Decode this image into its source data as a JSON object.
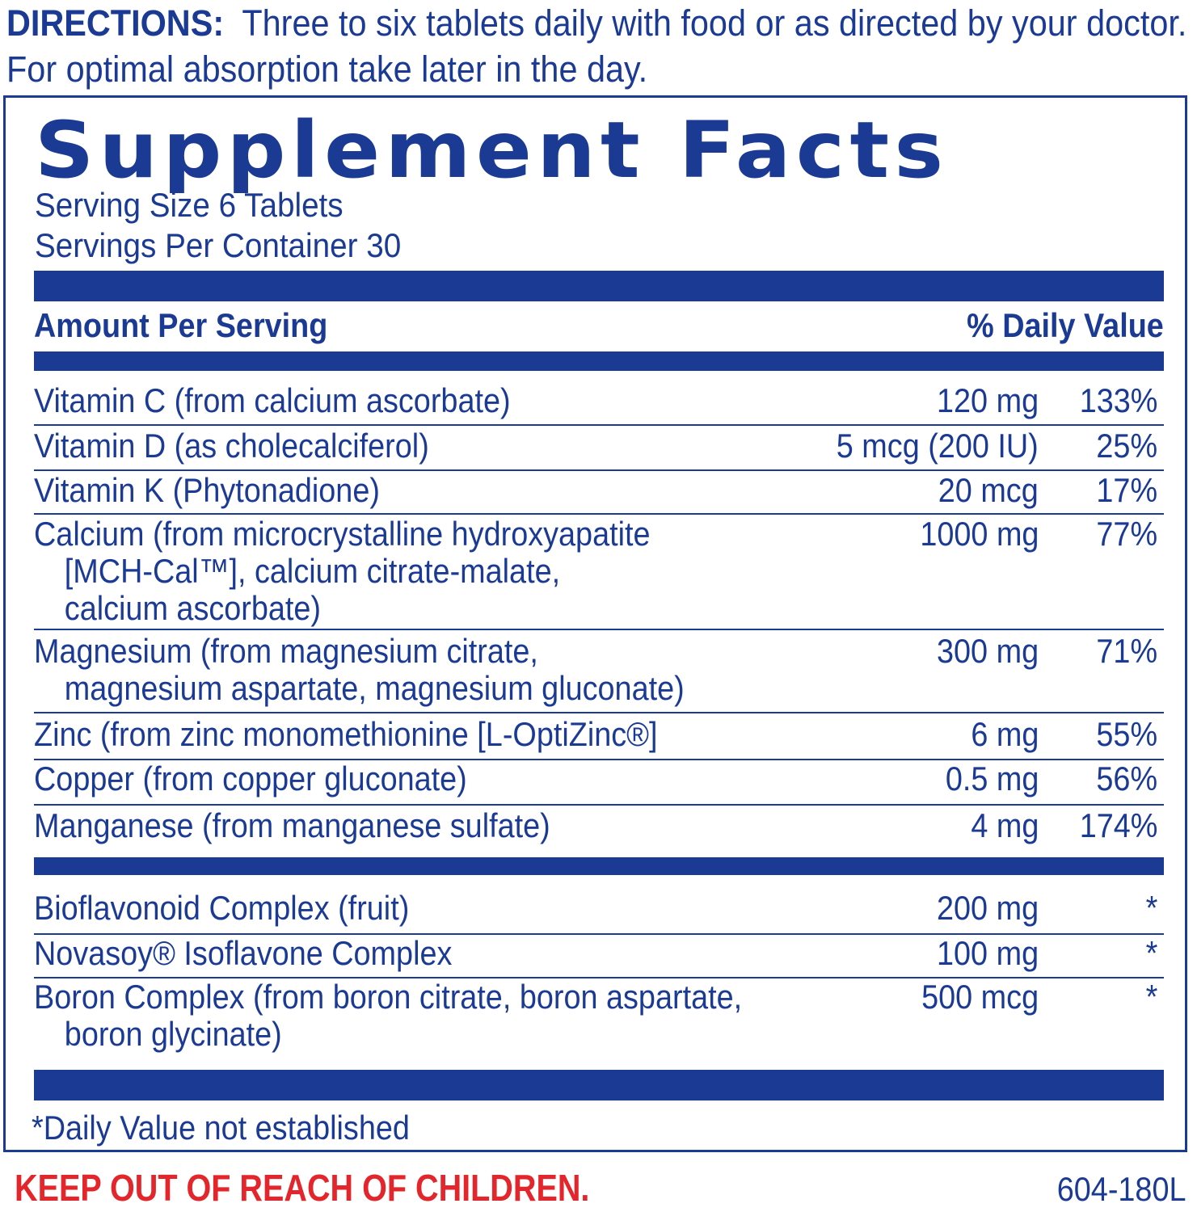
{
  "directions": {
    "label": "DIRECTIONS:",
    "text": "Three to six tablets daily with food or as directed by your doctor.  For optimal absorption take later in the day."
  },
  "facts": {
    "title": "Supplement Facts",
    "serving_size": "Serving Size 6 Tablets",
    "servings_per_container": "Servings Per Container 30",
    "amount_header": "Amount Per Serving",
    "dv_header": "% Daily Value",
    "nutrients": [
      {
        "name": "Vitamin C (from calcium ascorbate)",
        "name2": "",
        "name3": "",
        "amount": "120 mg",
        "dv": "133%"
      },
      {
        "name": "Vitamin D (as cholecalciferol)",
        "name2": "",
        "name3": "",
        "amount": "5 mcg (200 IU)",
        "dv": "25%"
      },
      {
        "name": "Vitamin K (Phytonadione)",
        "name2": "",
        "name3": "",
        "amount": "20 mcg",
        "dv": "17%"
      },
      {
        "name": "Calcium (from microcrystalline hydroxyapatite",
        "name2": "[MCH-Cal™], calcium citrate-malate,",
        "name3": "calcium ascorbate)",
        "amount": "1000 mg",
        "dv": "77%"
      },
      {
        "name": "Magnesium (from magnesium citrate,",
        "name2": "magnesium aspartate, magnesium gluconate)",
        "name3": "",
        "amount": "300 mg",
        "dv": "71%"
      },
      {
        "name": "Zinc (from zinc monomethionine [L-OptiZinc®]",
        "name2": "",
        "name3": "",
        "amount": "6 mg",
        "dv": "55%"
      },
      {
        "name": "Copper (from copper gluconate)",
        "name2": "",
        "name3": "",
        "amount": "0.5 mg",
        "dv": "56%"
      },
      {
        "name": "Manganese (from manganese sulfate)",
        "name2": "",
        "name3": "",
        "amount": "4 mg",
        "dv": "174%"
      }
    ],
    "other_ingredients": [
      {
        "name": "Bioflavonoid Complex (fruit)",
        "name2": "",
        "amount": "200 mg",
        "dv": "*"
      },
      {
        "name": "Novasoy® Isoflavone Complex",
        "name2": "",
        "amount": "100 mg",
        "dv": "*"
      },
      {
        "name": "Boron Complex  (from boron citrate, boron aspartate,",
        "name2": "boron glycinate)",
        "amount": "500 mcg",
        "dv": "*"
      }
    ],
    "footnote": "*Daily Value not established"
  },
  "warning": "KEEP OUT OF REACH OF CHILDREN.",
  "product_code": "604-180L",
  "colors": {
    "label_blue": "#1b3a94",
    "warning_red": "#e3262b"
  }
}
